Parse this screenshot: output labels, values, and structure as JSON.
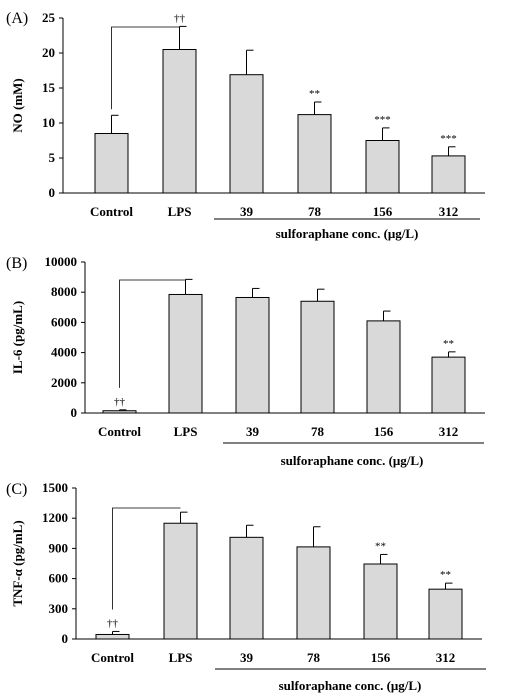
{
  "chart_data": [
    {
      "type": "bar",
      "panel": "(A)",
      "ylabel": "NO (mM)",
      "ylim": [
        0,
        25
      ],
      "yticks": [
        "0",
        "5",
        "10",
        "15",
        "20",
        "25"
      ],
      "categories": [
        "Control",
        "LPS",
        "39",
        "78",
        "156",
        "312"
      ],
      "values": [
        8.5,
        20.5,
        16.9,
        11.2,
        7.5,
        5.3
      ],
      "errors": [
        2.6,
        3.3,
        3.5,
        1.8,
        1.8,
        1.3
      ],
      "annotations": [
        "",
        "††",
        "",
        "**",
        "***",
        "***"
      ],
      "group_label": "sulforaphane conc. (μg/L)"
    },
    {
      "type": "bar",
      "panel": "(B)",
      "ylabel": "IL-6 (pg/mL)",
      "ylim": [
        0,
        10000
      ],
      "yticks": [
        "0",
        "2000",
        "4000",
        "6000",
        "8000",
        "10000"
      ],
      "categories": [
        "Control",
        "LPS",
        "39",
        "78",
        "156",
        "312"
      ],
      "values": [
        150,
        7850,
        7650,
        7400,
        6100,
        3700
      ],
      "errors": [
        60,
        1000,
        600,
        800,
        650,
        350
      ],
      "annotations": [
        "††",
        "",
        "",
        "",
        "",
        "**"
      ],
      "group_label": "sulforaphane conc. (μg/L)"
    },
    {
      "type": "bar",
      "panel": "(C)",
      "ylabel": "TNF-α (pg/mL)",
      "ylim": [
        0,
        1500
      ],
      "yticks": [
        "0",
        "300",
        "600",
        "900",
        "1200",
        "1500"
      ],
      "categories": [
        "Control",
        "LPS",
        "39",
        "78",
        "156",
        "312"
      ],
      "values": [
        45,
        1150,
        1010,
        915,
        745,
        495
      ],
      "errors": [
        30,
        110,
        120,
        200,
        95,
        60
      ],
      "annotations": [
        "††",
        "",
        "",
        "",
        "**",
        "**"
      ],
      "group_label": "sulforaphane conc. (μg/L)"
    }
  ]
}
